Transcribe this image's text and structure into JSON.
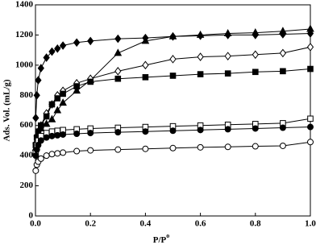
{
  "chart_data": {
    "type": "line",
    "x_label": "P/P",
    "x_label_sup": "o",
    "y_label": "Ads. Vol. (mL/g)",
    "x": [
      0.001,
      0.005,
      0.01,
      0.02,
      0.04,
      0.06,
      0.08,
      0.1,
      0.15,
      0.2,
      0.3,
      0.4,
      0.5,
      0.6,
      0.7,
      0.8,
      0.9,
      1.0
    ],
    "xlim": [
      0,
      1
    ],
    "ylim": [
      0,
      1400
    ],
    "xticks": [
      {
        "value": 0,
        "label": "0.0"
      },
      0.2,
      0.4,
      0.6,
      0.8,
      {
        "value": 1,
        "label": "1.0"
      }
    ],
    "yticks": [
      0,
      200,
      400,
      600,
      800,
      1000,
      1200,
      1400
    ],
    "series": [
      {
        "color": "#000000",
        "marker": "diamond",
        "filled": true,
        "values": [
          650,
          800,
          900,
          980,
          1050,
          1090,
          1110,
          1130,
          1150,
          1160,
          1175,
          1180,
          1190,
          1195,
          1200,
          1200,
          1205,
          1210
        ]
      },
      {
        "color": "#000000",
        "marker": "triangle",
        "filled": true,
        "values": [
          450,
          500,
          540,
          580,
          610,
          640,
          700,
          750,
          830,
          900,
          1080,
          1160,
          1190,
          1200,
          1210,
          1215,
          1225,
          1240
        ]
      },
      {
        "color": "#000000",
        "marker": "diamond",
        "filled": false,
        "values": [
          480,
          530,
          560,
          600,
          680,
          740,
          800,
          830,
          880,
          910,
          960,
          1000,
          1040,
          1055,
          1060,
          1070,
          1080,
          1120
        ]
      },
      {
        "color": "#000000",
        "marker": "square",
        "filled": true,
        "values": [
          470,
          520,
          560,
          600,
          660,
          740,
          780,
          810,
          860,
          890,
          910,
          920,
          930,
          940,
          945,
          955,
          960,
          975
        ]
      },
      {
        "color": "#000000",
        "marker": "square",
        "filled": false,
        "values": [
          420,
          470,
          500,
          530,
          550,
          560,
          565,
          570,
          575,
          580,
          585,
          590,
          595,
          600,
          605,
          610,
          615,
          645
        ]
      },
      {
        "color": "#000000",
        "marker": "circle",
        "filled": true,
        "values": [
          400,
          440,
          470,
          500,
          520,
          530,
          535,
          540,
          545,
          550,
          555,
          560,
          565,
          570,
          575,
          580,
          585,
          590
        ]
      },
      {
        "color": "#000000",
        "marker": "circle",
        "filled": false,
        "values": [
          300,
          340,
          360,
          380,
          400,
          410,
          415,
          420,
          430,
          435,
          440,
          445,
          450,
          455,
          458,
          462,
          465,
          490
        ]
      }
    ]
  }
}
